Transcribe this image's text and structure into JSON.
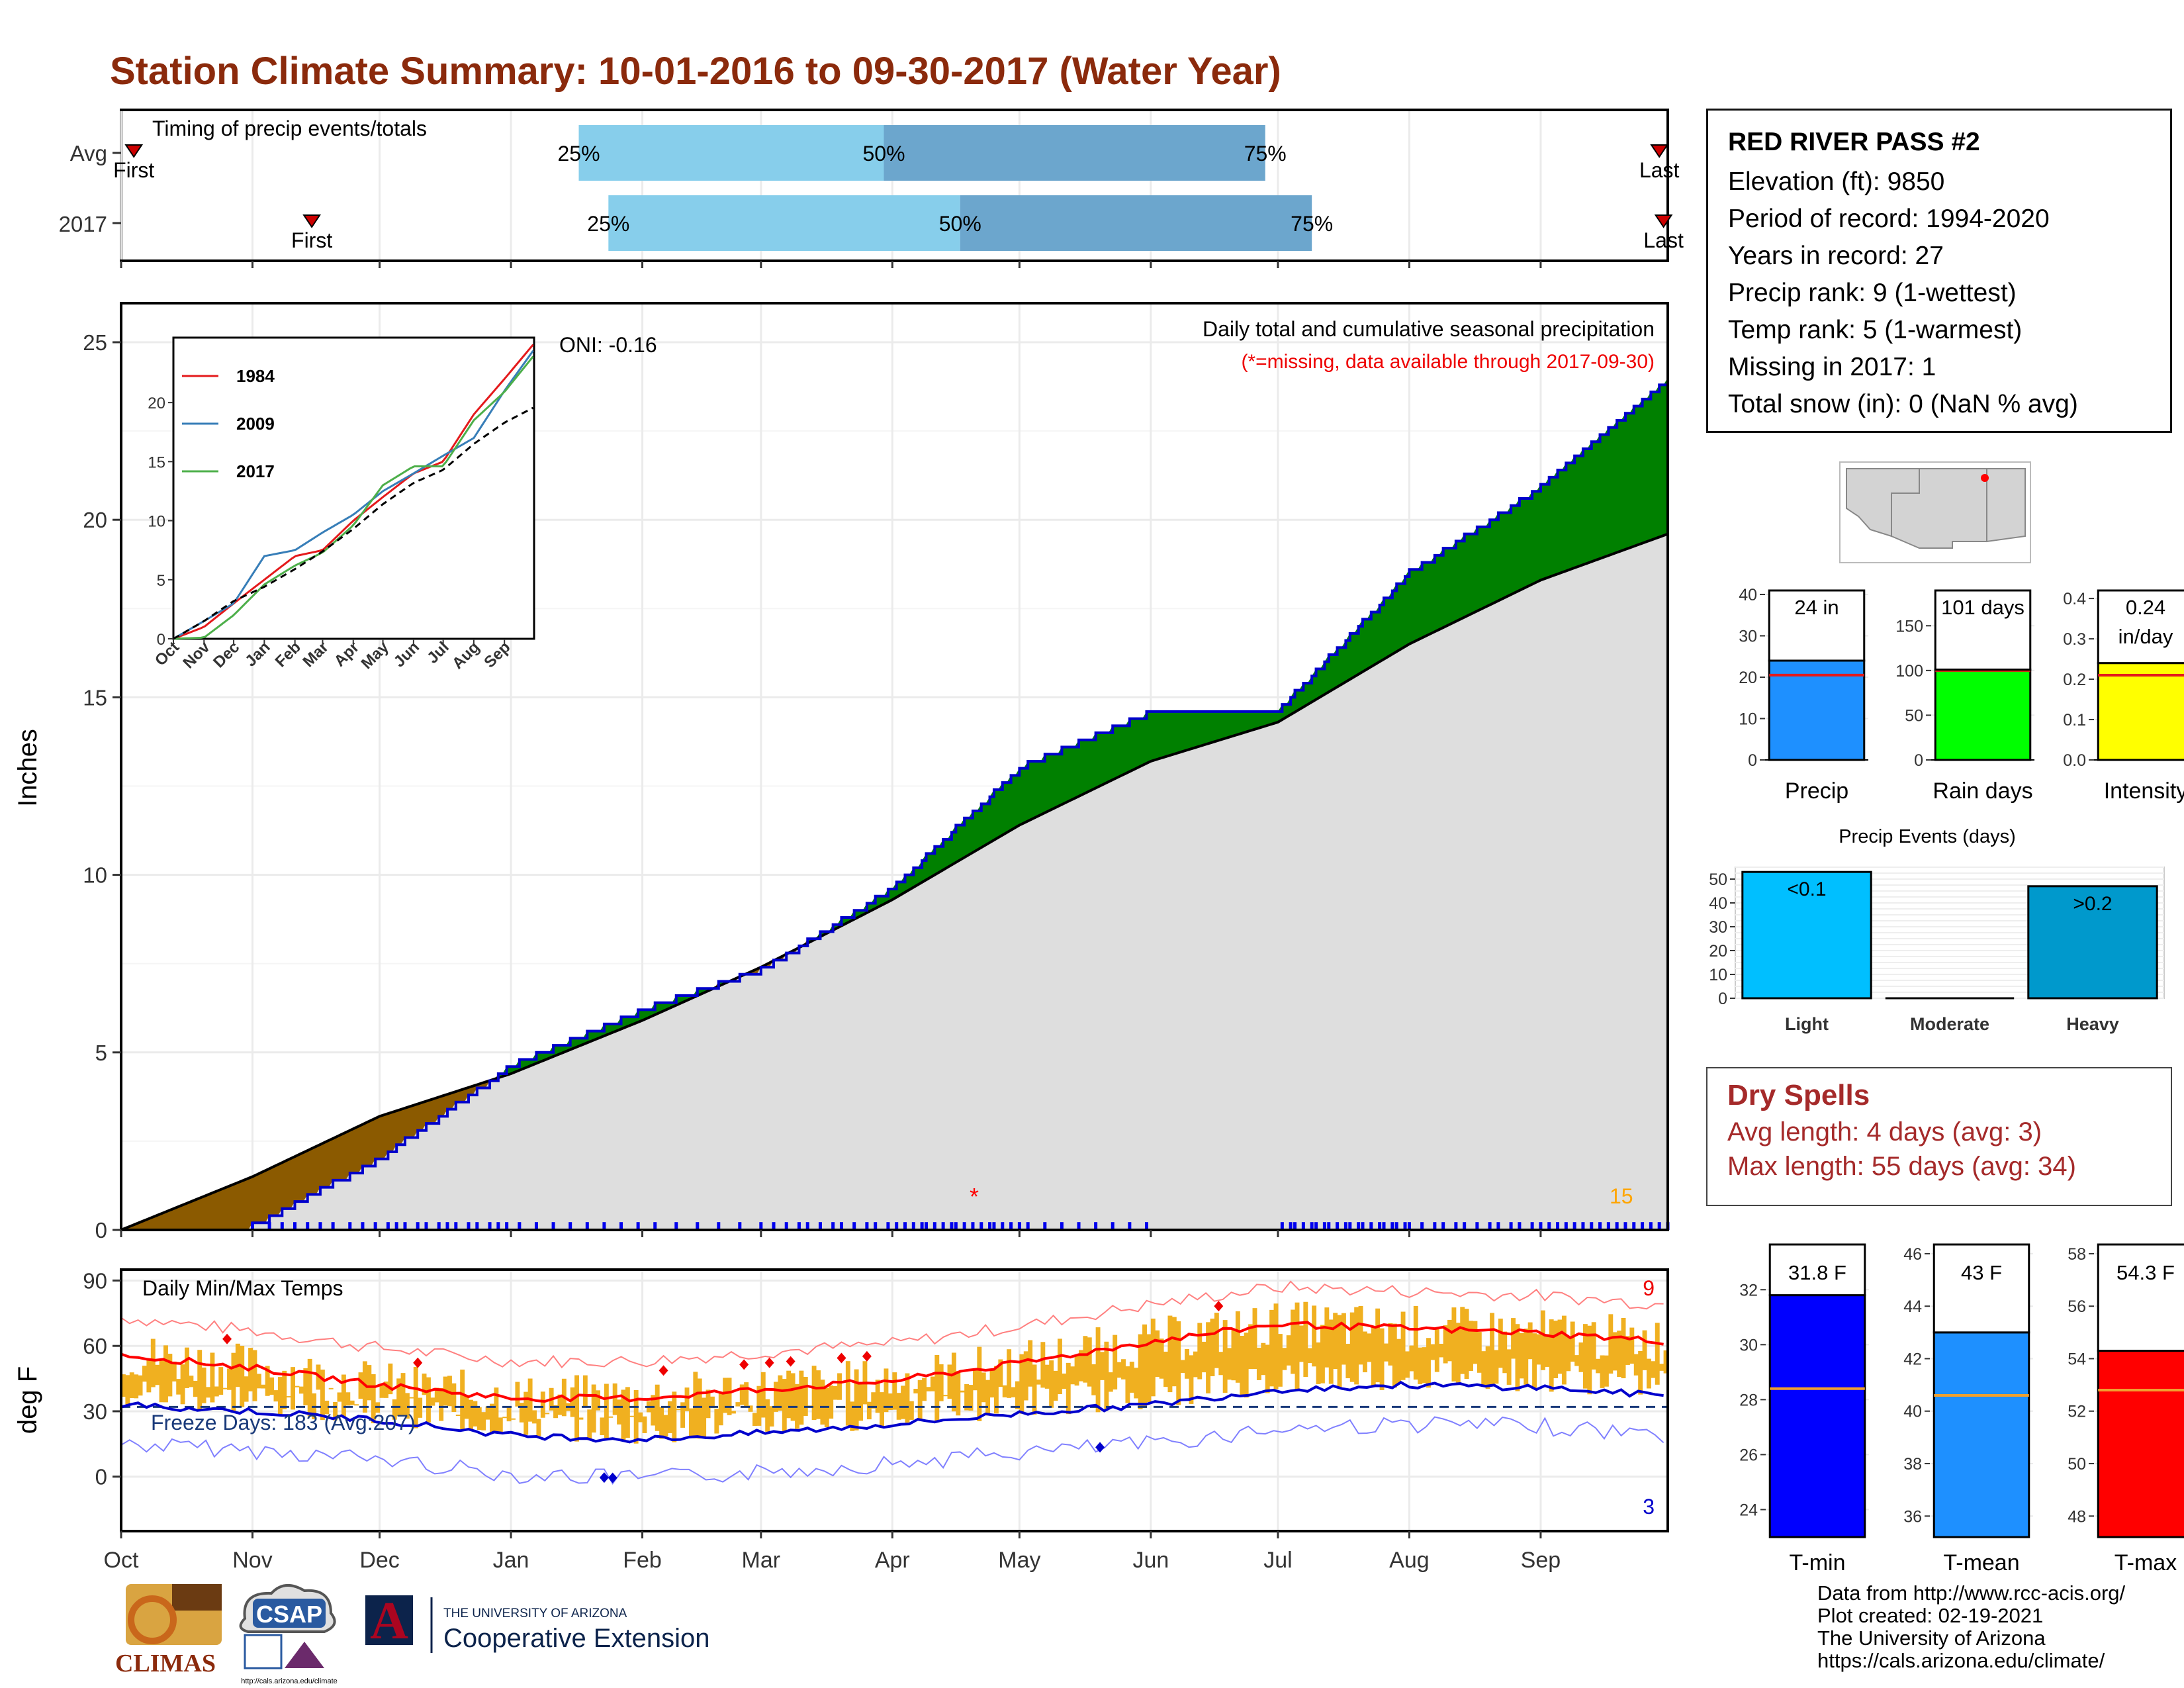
{
  "title": "Station Climate Summary: 10-01-2016 to 09-30-2017 (Water Year)",
  "colors": {
    "title": "#8b2a0c",
    "above_normal": "#008000",
    "below_normal": "#8b5a00",
    "normal_fill": "#dedede",
    "cum_line": "#0000cc",
    "bar_light": "#87ceeb",
    "bar_dark": "#6ca6cd",
    "temp_band": "#f0b020",
    "tmax_avg": "#ff0000",
    "tmin_avg": "#0000cc"
  },
  "timing": {
    "label": "Timing of precip events/totals",
    "rows": [
      {
        "name": "Avg",
        "first_label": "First",
        "last_label": "Last",
        "first_day": 3,
        "last_day": 363,
        "p25_label": "25%",
        "p50_label": "50%",
        "p75_label": "75%",
        "p25_day": 108,
        "p50_day": 180,
        "p75_day": 270
      },
      {
        "name": "2017",
        "first_label": "First",
        "last_label": "Last",
        "first_day": 45,
        "last_day": 364,
        "p25_label": "25%",
        "p50_label": "50%",
        "p75_label": "75%",
        "p25_day": 115,
        "p50_day": 198,
        "p75_day": 281
      }
    ]
  },
  "months": [
    "Oct",
    "Nov",
    "Dec",
    "Jan",
    "Feb",
    "Mar",
    "Apr",
    "May",
    "Jun",
    "Jul",
    "Aug",
    "Sep"
  ],
  "precip_panel": {
    "ylabel": "Inches",
    "title": "Daily total and cumulative seasonal precipitation",
    "missing_note": "(*=missing, data available through 2017-09-30)",
    "oni": "ONI: -0.16",
    "count_label": "15",
    "yticks": [
      "0",
      "5",
      "10",
      "15",
      "20",
      "25"
    ]
  },
  "inset": {
    "xticks": [
      "Oct",
      "Nov",
      "Dec",
      "Jan",
      "Feb",
      "Mar",
      "Apr",
      "May",
      "Jun",
      "Jul",
      "Aug",
      "Sep"
    ],
    "yticks": [
      "0",
      "5",
      "10",
      "15",
      "20"
    ],
    "legend": [
      {
        "name": "1984",
        "color": "#e41a1c"
      },
      {
        "name": "2009",
        "color": "#377eb8"
      },
      {
        "name": "2017",
        "color": "#4daf4a"
      }
    ]
  },
  "temp_panel": {
    "ylabel": "deg F",
    "title": "Daily Min/Max Temps",
    "freeze": "Freeze Days: 183 (Avg:207)",
    "record_high_count": "9",
    "record_low_count": "3",
    "yticks": [
      "0",
      "30",
      "60",
      "90"
    ]
  },
  "station": {
    "name": "RED RIVER PASS #2",
    "lines": [
      "Elevation (ft): 9850",
      "Period of record: 1994-2020",
      "Years in record: 27",
      "Precip rank: 9 (1-wettest)",
      "Temp rank: 5 (1-warmest)",
      "Missing in 2017: 1",
      "Total snow (in): 0 (NaN % avg)"
    ]
  },
  "summary_bars": [
    {
      "label": "Precip",
      "value_label": "24 in",
      "value": 24,
      "avg": 20.5,
      "ymax": 40,
      "yticks": [
        "0",
        "10",
        "20",
        "30",
        "40"
      ],
      "color": "#1e90ff"
    },
    {
      "label": "Rain days",
      "value_label": "101 days",
      "value": 101,
      "avg": 100,
      "ymax": 185,
      "yticks": [
        "0",
        "50",
        "100",
        "150"
      ],
      "color": "#00ff00"
    },
    {
      "label": "Intensity",
      "value_label": "0.24",
      "value_label2": "in/day",
      "value": 0.24,
      "avg": 0.21,
      "ymax": 0.41,
      "yticks": [
        "0.0",
        "0.1",
        "0.2",
        "0.3",
        "0.4"
      ],
      "color": "#ffff00"
    }
  ],
  "events": {
    "title": "Precip Events (days)",
    "yticks": [
      "0",
      "10",
      "20",
      "30",
      "40",
      "50"
    ],
    "bars": [
      {
        "label": "Light",
        "tag": "<0.1",
        "value": 53,
        "color": "#00bfff"
      },
      {
        "label": "Moderate",
        "tag": "",
        "value": 0,
        "color": "#4682b4"
      },
      {
        "label": "Heavy",
        "tag": ">0.2",
        "value": 47,
        "color": "#0099cc"
      }
    ]
  },
  "dry_spells": {
    "title": "Dry Spells",
    "avg": "Avg length: 4 days (avg: 3)",
    "max": "Max length: 55 days (avg: 34)"
  },
  "temp_bars": [
    {
      "label": "T-min",
      "value_label": "31.8 F",
      "value": 31.8,
      "avg": 28.4,
      "ymin": 23,
      "ymax": 33.5,
      "yticks": [
        "24",
        "26",
        "28",
        "30",
        "32"
      ],
      "color": "#0000ff"
    },
    {
      "label": "T-mean",
      "value_label": "43 F",
      "value": 43,
      "avg": 40.6,
      "ymin": 35.2,
      "ymax": 46.2,
      "yticks": [
        "36",
        "38",
        "40",
        "42",
        "44",
        "46"
      ],
      "color": "#1e90ff"
    },
    {
      "label": "T-max",
      "value_label": "54.3 F",
      "value": 54.3,
      "avg": 52.8,
      "ymin": 47.2,
      "ymax": 58.2,
      "yticks": [
        "48",
        "50",
        "52",
        "54",
        "56",
        "58"
      ],
      "color": "#ff0000"
    }
  ],
  "credits": [
    "Data from http://www.rcc-acis.org/",
    "Plot created: 02-19-2021",
    "The University of Arizona",
    "https://cals.arizona.edu/climate/"
  ],
  "logos": {
    "climas": "CLIMAS",
    "csap": "CSAP",
    "csap_url": "http://cals.arizona.edu/climate",
    "ua_line1": "THE UNIVERSITY OF ARIZONA",
    "ua_line2": "Cooperative Extension"
  },
  "chart_data": [
    {
      "type": "bar",
      "title": "Timing of precip events/totals",
      "categories": [
        "Avg",
        "2017"
      ],
      "series": [
        {
          "name": "25%",
          "values": [
            108,
            115
          ]
        },
        {
          "name": "50%",
          "values": [
            180,
            198
          ]
        },
        {
          "name": "75%",
          "values": [
            270,
            281
          ]
        }
      ]
    },
    {
      "type": "area",
      "title": "Daily total and cumulative seasonal precipitation",
      "ylabel": "Inches",
      "ylim": [
        0,
        26
      ],
      "x": [
        "Oct",
        "Nov",
        "Dec",
        "Jan",
        "Feb",
        "Mar",
        "Apr",
        "May",
        "Jun",
        "Jul",
        "Aug",
        "Sep",
        "Sep-30"
      ],
      "series": [
        {
          "name": "",
          "values": [
            0,
            0.1,
            2.0,
            4.6,
            6.2,
            7.3,
            9.6,
            13.0,
            14.6,
            14.6,
            18.5,
            20.9,
            24.0
          ]
        },
        {
          "name": "",
          "values": [
            0,
            1.5,
            3.2,
            4.4,
            5.9,
            7.4,
            9.3,
            11.4,
            13.2,
            14.3,
            16.5,
            18.3,
            19.6
          ]
        }
      ]
    },
    {
      "type": "line",
      "xlabel": "",
      "ylabel": "",
      "ylim": [
        0,
        25
      ],
      "x": [
        "Oct",
        "Nov",
        "Dec",
        "Jan",
        "Feb",
        "Mar",
        "Apr",
        "May",
        "Jun",
        "Jul",
        "Aug",
        "Sep",
        "Sep-30"
      ],
      "series": [
        {
          "name": "1984",
          "values": [
            0,
            1,
            3,
            5,
            7,
            7.5,
            10,
            12,
            14,
            15,
            19,
            22,
            25
          ]
        },
        {
          "name": "2009",
          "values": [
            0,
            1.5,
            3,
            7,
            7.5,
            9,
            10.5,
            12.5,
            14,
            15.5,
            17,
            21,
            24.5
          ]
        },
        {
          "name": "2017",
          "values": [
            0,
            0.1,
            2,
            4.6,
            6.2,
            7.3,
            9.6,
            13,
            14.6,
            14.6,
            18.5,
            20.9,
            24
          ]
        },
        {
          "name": "",
          "values": [
            0,
            1.5,
            3.2,
            4.4,
            5.9,
            7.4,
            9.3,
            11.4,
            13.2,
            14.3,
            16.5,
            18.3,
            19.6
          ]
        }
      ]
    },
    {
      "type": "line",
      "title": "Daily Min/Max Temps",
      "ylabel": "deg F",
      "ylim": [
        -25,
        95
      ],
      "x": [
        "Oct",
        "Nov",
        "Dec",
        "Jan",
        "Feb",
        "Mar",
        "Apr",
        "May",
        "Jun",
        "Jul",
        "Aug",
        "Sep",
        "Sep-30"
      ],
      "series": [
        {
          "name": "",
          "values": [
            56,
            50,
            42,
            36,
            36,
            40,
            44,
            52,
            62,
            70,
            68,
            66,
            62
          ]
        },
        {
          "name": "",
          "values": [
            33,
            30,
            26,
            19,
            17,
            20,
            24,
            29,
            33,
            40,
            42,
            41,
            37
          ]
        }
      ]
    },
    {
      "type": "bar",
      "categories": [
        "Precip",
        "Rain days",
        "Intensity"
      ],
      "series": [
        {
          "name": "2017",
          "values": [
            24,
            101,
            0.24
          ]
        }
      ]
    },
    {
      "type": "bar",
      "title": "Precip Events (days)",
      "categories": [
        "Light",
        "Moderate",
        "Heavy"
      ],
      "values": [
        53,
        0,
        47
      ]
    },
    {
      "type": "bar",
      "categories": [
        "T-min",
        "T-mean",
        "T-max"
      ],
      "series": [
        {
          "name": "2017",
          "values": [
            31.8,
            43,
            54.3
          ]
        }
      ]
    }
  ]
}
